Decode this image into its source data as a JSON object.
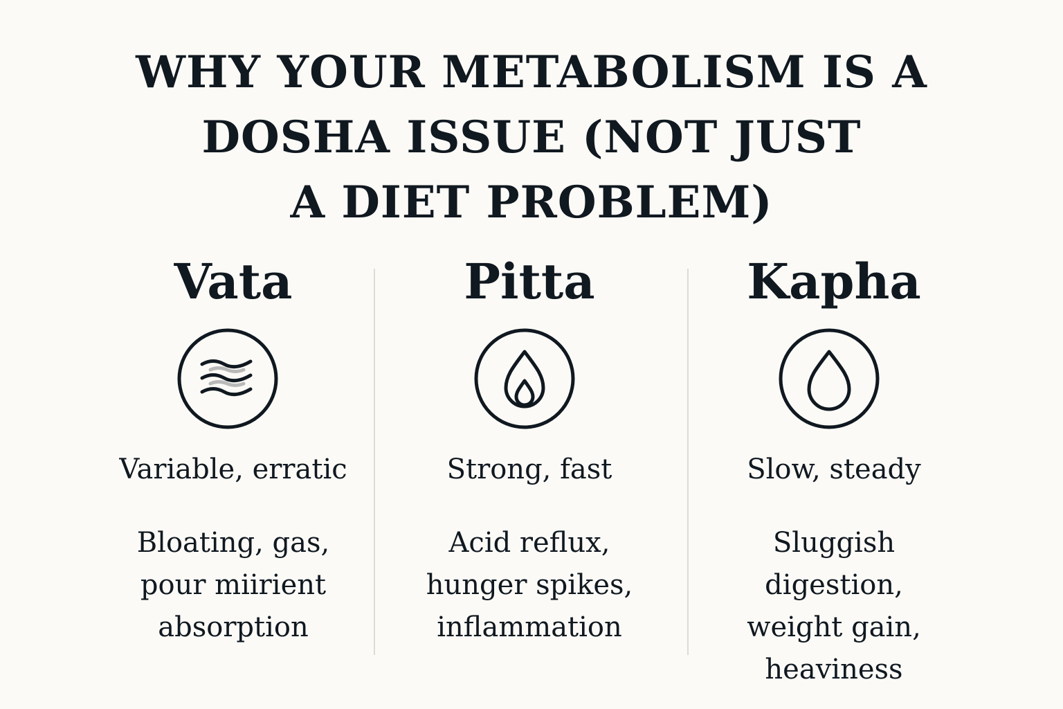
{
  "title": {
    "lines": [
      "WHY YOUR METABOLISM IS A",
      "DOSHA ISSUE (NOT JUST",
      "A DIET PROBLEM)"
    ]
  },
  "doshas": [
    {
      "name": "Vata",
      "icon": "wind-icon",
      "trait": "Variable, erratic",
      "symptoms": [
        "Bloating, gas,",
        "pour miirient",
        "absorption"
      ]
    },
    {
      "name": "Pitta",
      "icon": "flame-icon",
      "trait": "Strong, fast",
      "symptoms": [
        "Acid reflux,",
        "hunger spikes,",
        "inflammation"
      ]
    },
    {
      "name": "Kapha",
      "icon": "water-drop-icon",
      "trait": "Slow, steady",
      "symptoms": [
        "Sluggish",
        "digestion,",
        "weight gain,",
        "heaviness"
      ]
    }
  ],
  "colors": {
    "background": "#fbfaf6",
    "text": "#101820",
    "divider": "#dedbd4",
    "icon_accent": "#b9b9b9"
  }
}
